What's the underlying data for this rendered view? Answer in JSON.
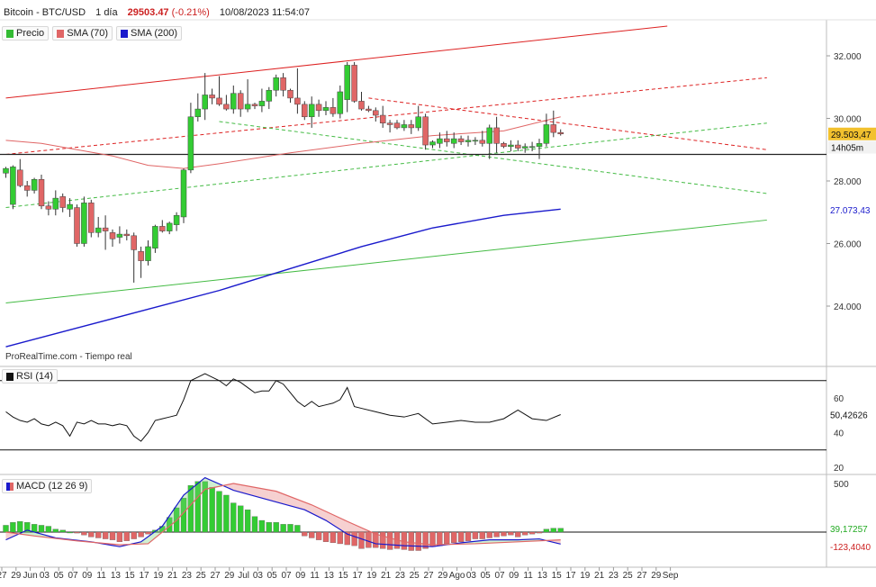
{
  "header": {
    "instrument": "Bitcoin - BTC/USD",
    "interval": "1 día",
    "price": "29503.47",
    "change": "(-0.21%)",
    "datetime": "10/08/2023 11:54:07"
  },
  "legend": [
    {
      "label": "Precio",
      "color": "#33bb33"
    },
    {
      "label": "SMA (70)",
      "color": "#e06666"
    },
    {
      "label": "SMA (200)",
      "color": "#1a1acc"
    }
  ],
  "source_text": "ProRealTime.com  - Tiempo real",
  "panes": {
    "rsi_label": "RSI (14)",
    "macd_label": "MACD (12 26 9)"
  },
  "axis_labels": {
    "price_ticks": [
      "32.000",
      "30.000",
      "28.000",
      "26.000",
      "24.000"
    ],
    "rsi_ticks": [
      "60",
      "40",
      "20"
    ],
    "macd_ticks": [
      "500"
    ]
  },
  "value_tags": {
    "price": "29.503,47",
    "timer": "14h05m",
    "sma200": "27.073,43",
    "rsi": "50,42626",
    "macd_hist": "39,17257",
    "macd_line": "-123,4040"
  },
  "x_tick_labels": [
    "27",
    "29",
    "Jun",
    "03",
    "05",
    "07",
    "09",
    "11",
    "13",
    "15",
    "17",
    "19",
    "21",
    "23",
    "25",
    "27",
    "29",
    "Jul",
    "03",
    "05",
    "07",
    "09",
    "11",
    "13",
    "15",
    "17",
    "19",
    "21",
    "23",
    "25",
    "27",
    "29",
    "Ago",
    "03",
    "05",
    "07",
    "09",
    "11",
    "13",
    "15",
    "17",
    "19",
    "21",
    "23",
    "25",
    "27",
    "29",
    "Sep"
  ],
  "colors": {
    "up": "#33cc33",
    "down": "#e06666",
    "sma70": "#e06666",
    "sma200": "#1a1acc",
    "channel": "#dd2222",
    "green_line": "#44bb44",
    "hline": "#222222"
  },
  "chart_data": {
    "type": "candlestick",
    "price_axis": {
      "ylim": [
        22800,
        33000
      ],
      "ticks": [
        32000,
        30000,
        28000,
        26000,
        24000
      ]
    },
    "horizontal_level": 28850,
    "candles": [
      {
        "o": 28250,
        "h": 28450,
        "l": 28100,
        "c": 28400
      },
      {
        "o": 27250,
        "h": 28500,
        "l": 27100,
        "c": 28450
      },
      {
        "o": 28350,
        "h": 28700,
        "l": 27800,
        "c": 27850
      },
      {
        "o": 27850,
        "h": 28000,
        "l": 27500,
        "c": 27700
      },
      {
        "o": 27700,
        "h": 28100,
        "l": 27600,
        "c": 28050
      },
      {
        "o": 28050,
        "h": 28200,
        "l": 27100,
        "c": 27200
      },
      {
        "o": 27200,
        "h": 27350,
        "l": 26900,
        "c": 27100
      },
      {
        "o": 27100,
        "h": 27700,
        "l": 26900,
        "c": 27450
      },
      {
        "o": 27500,
        "h": 27600,
        "l": 27000,
        "c": 27150
      },
      {
        "o": 27100,
        "h": 27450,
        "l": 26850,
        "c": 27250
      },
      {
        "o": 27150,
        "h": 27250,
        "l": 25900,
        "c": 26000
      },
      {
        "o": 26000,
        "h": 27500,
        "l": 25900,
        "c": 27300
      },
      {
        "o": 27300,
        "h": 27400,
        "l": 26200,
        "c": 26350
      },
      {
        "o": 26350,
        "h": 26850,
        "l": 26200,
        "c": 26500
      },
      {
        "o": 26500,
        "h": 26900,
        "l": 25800,
        "c": 26400
      },
      {
        "o": 26350,
        "h": 26450,
        "l": 25900,
        "c": 26150
      },
      {
        "o": 26200,
        "h": 26550,
        "l": 26000,
        "c": 26300
      },
      {
        "o": 26300,
        "h": 26450,
        "l": 26100,
        "c": 26250
      },
      {
        "o": 26250,
        "h": 26350,
        "l": 24750,
        "c": 25800
      },
      {
        "o": 25750,
        "h": 25900,
        "l": 24900,
        "c": 25450
      },
      {
        "o": 25450,
        "h": 26100,
        "l": 25300,
        "c": 25900
      },
      {
        "o": 25850,
        "h": 26600,
        "l": 25700,
        "c": 26550
      },
      {
        "o": 26550,
        "h": 26750,
        "l": 26350,
        "c": 26400
      },
      {
        "o": 26400,
        "h": 26700,
        "l": 26300,
        "c": 26650
      },
      {
        "o": 26600,
        "h": 27000,
        "l": 26400,
        "c": 26900
      },
      {
        "o": 26850,
        "h": 28400,
        "l": 26650,
        "c": 28350
      },
      {
        "o": 28350,
        "h": 30500,
        "l": 28250,
        "c": 30050
      },
      {
        "o": 30050,
        "h": 30800,
        "l": 29900,
        "c": 30300
      },
      {
        "o": 30300,
        "h": 31450,
        "l": 29950,
        "c": 30750
      },
      {
        "o": 30750,
        "h": 30950,
        "l": 30450,
        "c": 30650
      },
      {
        "o": 30650,
        "h": 31350,
        "l": 30400,
        "c": 30450
      },
      {
        "o": 30450,
        "h": 30750,
        "l": 30250,
        "c": 30300
      },
      {
        "o": 30300,
        "h": 31050,
        "l": 30150,
        "c": 30800
      },
      {
        "o": 30800,
        "h": 30900,
        "l": 30050,
        "c": 30300
      },
      {
        "o": 30300,
        "h": 31250,
        "l": 30200,
        "c": 30450
      },
      {
        "o": 30450,
        "h": 30500,
        "l": 30300,
        "c": 30400
      },
      {
        "o": 30400,
        "h": 30950,
        "l": 30200,
        "c": 30550
      },
      {
        "o": 30550,
        "h": 31000,
        "l": 30300,
        "c": 30900
      },
      {
        "o": 30900,
        "h": 31400,
        "l": 30700,
        "c": 31300
      },
      {
        "o": 31300,
        "h": 31450,
        "l": 30700,
        "c": 30900
      },
      {
        "o": 30900,
        "h": 30950,
        "l": 30500,
        "c": 30650
      },
      {
        "o": 30650,
        "h": 31600,
        "l": 30150,
        "c": 30450
      },
      {
        "o": 30450,
        "h": 30550,
        "l": 29950,
        "c": 30050
      },
      {
        "o": 30050,
        "h": 30700,
        "l": 29700,
        "c": 30450
      },
      {
        "o": 30450,
        "h": 30600,
        "l": 30050,
        "c": 30250
      },
      {
        "o": 30250,
        "h": 30550,
        "l": 30100,
        "c": 30350
      },
      {
        "o": 30350,
        "h": 30650,
        "l": 30050,
        "c": 30150
      },
      {
        "o": 30150,
        "h": 31050,
        "l": 30000,
        "c": 30850
      },
      {
        "o": 30600,
        "h": 31800,
        "l": 30200,
        "c": 31700
      },
      {
        "o": 31700,
        "h": 31800,
        "l": 30500,
        "c": 30550
      },
      {
        "o": 30550,
        "h": 30850,
        "l": 30250,
        "c": 30300
      },
      {
        "o": 30300,
        "h": 30400,
        "l": 30200,
        "c": 30250
      },
      {
        "o": 30250,
        "h": 30350,
        "l": 29900,
        "c": 30100
      },
      {
        "o": 30100,
        "h": 30400,
        "l": 29700,
        "c": 29850
      },
      {
        "o": 29850,
        "h": 29950,
        "l": 29550,
        "c": 29800
      },
      {
        "o": 29850,
        "h": 29950,
        "l": 29650,
        "c": 29700
      },
      {
        "o": 29700,
        "h": 29950,
        "l": 29600,
        "c": 29800
      },
      {
        "o": 29800,
        "h": 29950,
        "l": 29500,
        "c": 29700
      },
      {
        "o": 29700,
        "h": 30400,
        "l": 29600,
        "c": 30050
      },
      {
        "o": 30050,
        "h": 30150,
        "l": 29000,
        "c": 29150
      },
      {
        "o": 29150,
        "h": 29300,
        "l": 29050,
        "c": 29250
      },
      {
        "o": 29200,
        "h": 29550,
        "l": 29050,
        "c": 29350
      },
      {
        "o": 29350,
        "h": 29600,
        "l": 29100,
        "c": 29250
      },
      {
        "o": 29200,
        "h": 29550,
        "l": 29050,
        "c": 29350
      },
      {
        "o": 29350,
        "h": 29450,
        "l": 29150,
        "c": 29250
      },
      {
        "o": 29250,
        "h": 29450,
        "l": 29100,
        "c": 29300
      },
      {
        "o": 29300,
        "h": 29400,
        "l": 29150,
        "c": 29300
      },
      {
        "o": 29300,
        "h": 29600,
        "l": 29100,
        "c": 29200
      },
      {
        "o": 29200,
        "h": 29800,
        "l": 28700,
        "c": 29700
      },
      {
        "o": 29700,
        "h": 30050,
        "l": 28900,
        "c": 29200
      },
      {
        "o": 29200,
        "h": 29250,
        "l": 29050,
        "c": 29100
      },
      {
        "o": 29100,
        "h": 29300,
        "l": 28950,
        "c": 29150
      },
      {
        "o": 29150,
        "h": 29300,
        "l": 28950,
        "c": 29050
      },
      {
        "o": 29050,
        "h": 29200,
        "l": 28900,
        "c": 29100
      },
      {
        "o": 29100,
        "h": 29250,
        "l": 28950,
        "c": 29100
      },
      {
        "o": 29100,
        "h": 29350,
        "l": 28700,
        "c": 29200
      },
      {
        "o": 29200,
        "h": 30150,
        "l": 29100,
        "c": 29800
      },
      {
        "o": 29800,
        "h": 30250,
        "l": 29400,
        "c": 29550
      },
      {
        "o": 29550,
        "h": 29650,
        "l": 29450,
        "c": 29503
      }
    ],
    "sma70": [
      [
        0,
        29300
      ],
      [
        5,
        29200
      ],
      [
        10,
        29000
      ],
      [
        15,
        28800
      ],
      [
        20,
        28500
      ],
      [
        25,
        28400
      ],
      [
        30,
        28550
      ],
      [
        40,
        28900
      ],
      [
        50,
        29200
      ],
      [
        60,
        29450
      ],
      [
        70,
        29600
      ],
      [
        78,
        30050
      ]
    ],
    "sma200": [
      [
        0,
        22700
      ],
      [
        10,
        23300
      ],
      [
        20,
        23900
      ],
      [
        30,
        24500
      ],
      [
        40,
        25200
      ],
      [
        50,
        25900
      ],
      [
        60,
        26500
      ],
      [
        70,
        26900
      ],
      [
        78,
        27100
      ]
    ],
    "trendlines": [
      {
        "style": "solid",
        "color": "#dd2222",
        "from": [
          0,
          30650
        ],
        "to": [
          93,
          32950
        ]
      },
      {
        "style": "dashed",
        "color": "#dd2222",
        "from": [
          0,
          28850
        ],
        "to": [
          107,
          31300
        ]
      },
      {
        "style": "dashed",
        "color": "#dd2222",
        "from": [
          51,
          30650
        ],
        "to": [
          107,
          29000
        ]
      },
      {
        "style": "dashed",
        "color": "#44bb44",
        "from": [
          0,
          27150
        ],
        "to": [
          107,
          29850
        ]
      },
      {
        "style": "dashed",
        "color": "#44bb44",
        "from": [
          30,
          29900
        ],
        "to": [
          107,
          27600
        ]
      },
      {
        "style": "solid",
        "color": "#44bb44",
        "from": [
          0,
          24100
        ],
        "to": [
          107,
          26750
        ]
      }
    ],
    "rsi": {
      "ylim": [
        15,
        75
      ],
      "bands": [
        70,
        30
      ],
      "values": [
        [
          0,
          52
        ],
        [
          1,
          49
        ],
        [
          2,
          47
        ],
        [
          3,
          46
        ],
        [
          4,
          48
        ],
        [
          5,
          45
        ],
        [
          6,
          44
        ],
        [
          7,
          46
        ],
        [
          8,
          44
        ],
        [
          9,
          38
        ],
        [
          10,
          46
        ],
        [
          11,
          45
        ],
        [
          12,
          47
        ],
        [
          13,
          45
        ],
        [
          14,
          45
        ],
        [
          15,
          44
        ],
        [
          16,
          45
        ],
        [
          17,
          44
        ],
        [
          18,
          38
        ],
        [
          19,
          35
        ],
        [
          20,
          40
        ],
        [
          21,
          47
        ],
        [
          22,
          48
        ],
        [
          23,
          49
        ],
        [
          24,
          50
        ],
        [
          25,
          59
        ],
        [
          26,
          70
        ],
        [
          27,
          72
        ],
        [
          28,
          74
        ],
        [
          29,
          72
        ],
        [
          30,
          70
        ],
        [
          31,
          67
        ],
        [
          32,
          71
        ],
        [
          33,
          69
        ],
        [
          34,
          66
        ],
        [
          35,
          63
        ],
        [
          36,
          64
        ],
        [
          37,
          64
        ],
        [
          38,
          70
        ],
        [
          39,
          68
        ],
        [
          40,
          63
        ],
        [
          41,
          58
        ],
        [
          42,
          55
        ],
        [
          43,
          58
        ],
        [
          44,
          55
        ],
        [
          45,
          56
        ],
        [
          46,
          57
        ],
        [
          47,
          59
        ],
        [
          48,
          66
        ],
        [
          49,
          55
        ],
        [
          50,
          54
        ],
        [
          52,
          52
        ],
        [
          54,
          50
        ],
        [
          56,
          49
        ],
        [
          58,
          51
        ],
        [
          60,
          45
        ],
        [
          62,
          46
        ],
        [
          64,
          47
        ],
        [
          66,
          46
        ],
        [
          68,
          46
        ],
        [
          70,
          48
        ],
        [
          72,
          53
        ],
        [
          74,
          48
        ],
        [
          76,
          47
        ],
        [
          78,
          50.4
        ]
      ]
    },
    "macd": {
      "ylim": [
        -130,
        560
      ],
      "histogram": [
        70,
        100,
        110,
        100,
        80,
        70,
        60,
        30,
        20,
        0,
        -10,
        -30,
        -50,
        -60,
        -70,
        -80,
        -100,
        -90,
        -70,
        -50,
        -20,
        20,
        60,
        150,
        250,
        350,
        480,
        520,
        520,
        460,
        420,
        380,
        300,
        270,
        230,
        160,
        120,
        100,
        100,
        80,
        80,
        70,
        -40,
        -60,
        -80,
        -100,
        -110,
        -120,
        -130,
        -140,
        -170,
        -160,
        -160,
        -170,
        -180,
        -170,
        -180,
        -190,
        -190,
        -170,
        -150,
        -140,
        -120,
        -110,
        -100,
        -90,
        -70,
        -70,
        -60,
        -50,
        -40,
        -30,
        -50,
        -30,
        -20,
        -10,
        30,
        40,
        39
      ],
      "macd_line": [
        [
          0,
          -80
        ],
        [
          3,
          20
        ],
        [
          7,
          -60
        ],
        [
          12,
          -100
        ],
        [
          16,
          -150
        ],
        [
          19,
          -100
        ],
        [
          22,
          60
        ],
        [
          25,
          380
        ],
        [
          28,
          560
        ],
        [
          32,
          430
        ],
        [
          38,
          310
        ],
        [
          42,
          230
        ],
        [
          45,
          120
        ],
        [
          48,
          -20
        ],
        [
          52,
          -120
        ],
        [
          56,
          -140
        ],
        [
          60,
          -150
        ],
        [
          64,
          -110
        ],
        [
          68,
          -80
        ],
        [
          72,
          -80
        ],
        [
          75,
          -70
        ],
        [
          78,
          -123
        ]
      ],
      "signal_line": [
        [
          0,
          0
        ],
        [
          4,
          -40
        ],
        [
          10,
          -90
        ],
        [
          16,
          -130
        ],
        [
          20,
          -120
        ],
        [
          24,
          120
        ],
        [
          28,
          440
        ],
        [
          32,
          500
        ],
        [
          38,
          420
        ],
        [
          43,
          280
        ],
        [
          48,
          110
        ],
        [
          52,
          -20
        ],
        [
          56,
          -100
        ],
        [
          60,
          -130
        ],
        [
          66,
          -120
        ],
        [
          72,
          -100
        ],
        [
          78,
          -80
        ]
      ]
    }
  }
}
